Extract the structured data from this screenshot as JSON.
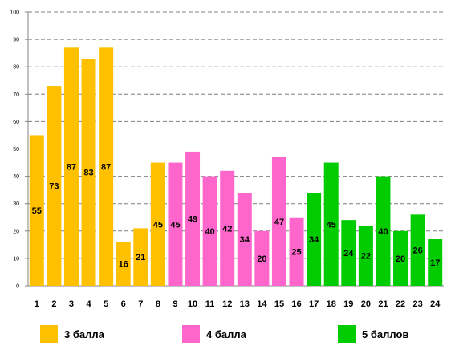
{
  "chart_data": {
    "type": "bar",
    "categories": [
      "1",
      "2",
      "3",
      "4",
      "5",
      "6",
      "7",
      "8",
      "9",
      "10",
      "11",
      "12",
      "13",
      "14",
      "15",
      "16",
      "17",
      "18",
      "19",
      "20",
      "21",
      "22",
      "23",
      "24"
    ],
    "values": [
      55,
      73,
      87,
      83,
      87,
      16,
      21,
      45,
      45,
      49,
      40,
      42,
      34,
      20,
      47,
      25,
      34,
      45,
      24,
      22,
      40,
      20,
      26,
      17
    ],
    "groups": [
      0,
      0,
      0,
      0,
      0,
      0,
      0,
      0,
      1,
      1,
      1,
      1,
      1,
      1,
      1,
      1,
      2,
      2,
      2,
      2,
      2,
      2,
      2,
      2
    ],
    "ylim": [
      0,
      100
    ],
    "yticks": [
      0,
      10,
      20,
      30,
      40,
      50,
      60,
      70,
      80,
      90,
      100
    ],
    "grid": true,
    "legend_position": "bottom",
    "colors": [
      "#FFC000",
      "#FF66CC",
      "#00CC00"
    ]
  },
  "legend": [
    {
      "label": "3 балла",
      "color": "#FFC000"
    },
    {
      "label": "4 балла",
      "color": "#FF66CC"
    },
    {
      "label": "5 баллов",
      "color": "#00CC00"
    }
  ]
}
